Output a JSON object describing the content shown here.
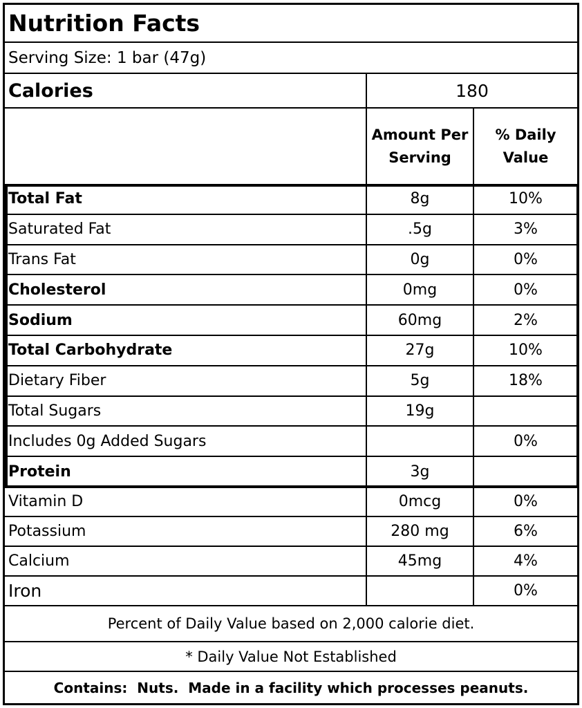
{
  "title": "Nutrition Facts",
  "serving_size": "Serving Size: 1 bar (47g)",
  "calories": {
    "label": "Calories",
    "value": "180"
  },
  "columns": {
    "amount": "Amount Per Serving",
    "daily_value": "% Daily Value"
  },
  "nutrients": [
    {
      "name": "Total Fat",
      "amount": "8g",
      "dv": "10%",
      "bold": true
    },
    {
      "name": "Saturated Fat",
      "amount": ".5g",
      "dv": "3%",
      "bold": false
    },
    {
      "name": "Trans Fat",
      "amount": "0g",
      "dv": "0%",
      "bold": false
    },
    {
      "name": "Cholesterol",
      "amount": "0mg",
      "dv": "0%",
      "bold": true
    },
    {
      "name": "Sodium",
      "amount": "60mg",
      "dv": "2%",
      "bold": true
    },
    {
      "name": "Total Carbohydrate",
      "amount": "27g",
      "dv": "10%",
      "bold": true
    },
    {
      "name": "Dietary Fiber",
      "amount": "5g",
      "dv": "18%",
      "bold": false
    },
    {
      "name": "Total Sugars",
      "amount": "19g",
      "dv": "",
      "bold": false
    },
    {
      "name": "Includes 0g Added Sugars",
      "amount": "",
      "dv": "0%",
      "bold": false
    },
    {
      "name": "Protein",
      "amount": "3g",
      "dv": "",
      "bold": true
    }
  ],
  "vitamins": [
    {
      "name": "Vitamin D",
      "amount": "0mcg",
      "dv": "0%"
    },
    {
      "name": "Potassium",
      "amount": "280 mg",
      "dv": "6%"
    },
    {
      "name": "Calcium",
      "amount": "45mg",
      "dv": "4%"
    },
    {
      "name": "Iron",
      "amount": "",
      "dv": "0%"
    }
  ],
  "footnotes": {
    "percent_note": "Percent of Daily Value based on 2,000 calorie diet.",
    "not_established": "* Daily Value Not Established",
    "allergens": "Contains:  Nuts.  Made in a facility which processes peanuts."
  }
}
